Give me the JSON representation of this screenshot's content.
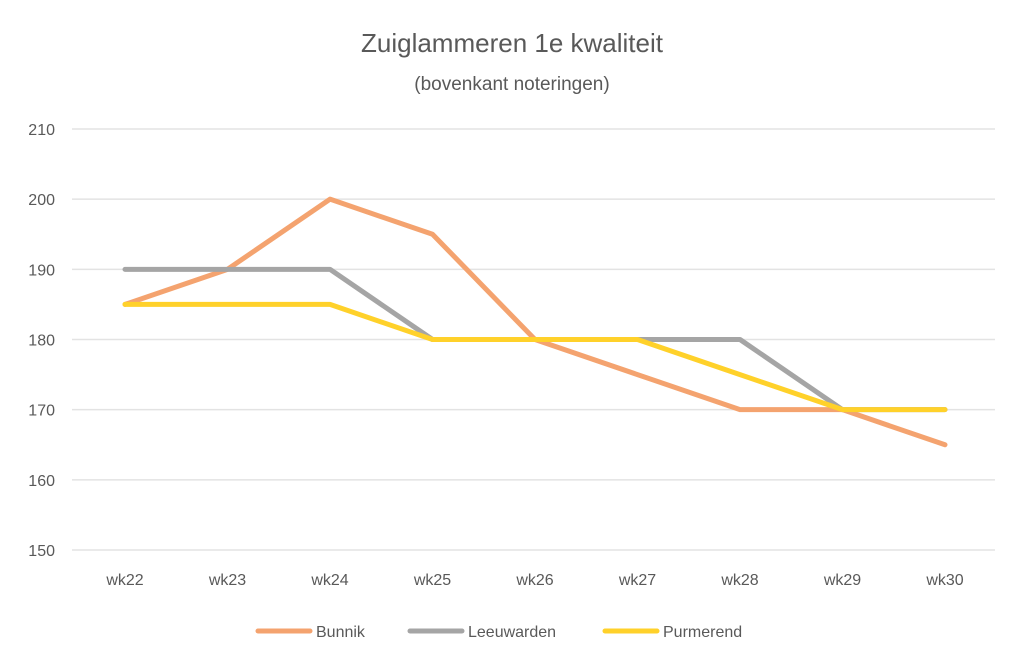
{
  "chart_data": {
    "type": "line",
    "title": "Zuiglammeren 1e kwaliteit",
    "subtitle": "(bovenkant noteringen)",
    "xlabel": "",
    "ylabel": "",
    "categories": [
      "wk22",
      "wk23",
      "wk24",
      "wk25",
      "wk26",
      "wk27",
      "wk28",
      "wk29",
      "wk30"
    ],
    "ylim": [
      150,
      210
    ],
    "yticks": [
      150,
      160,
      170,
      180,
      190,
      200,
      210
    ],
    "grid": true,
    "legend_position": "bottom",
    "series": [
      {
        "name": "Bunnik",
        "color": "#F4A36F",
        "values": [
          185,
          190,
          200,
          195,
          180,
          175,
          170,
          170,
          165
        ]
      },
      {
        "name": "Leeuwarden",
        "color": "#A5A5A5",
        "values": [
          190,
          190,
          190,
          180,
          180,
          180,
          180,
          170,
          170
        ]
      },
      {
        "name": "Purmerend",
        "color": "#FFD12A",
        "values": [
          185,
          185,
          185,
          180,
          180,
          180,
          175,
          170,
          170
        ]
      }
    ]
  }
}
